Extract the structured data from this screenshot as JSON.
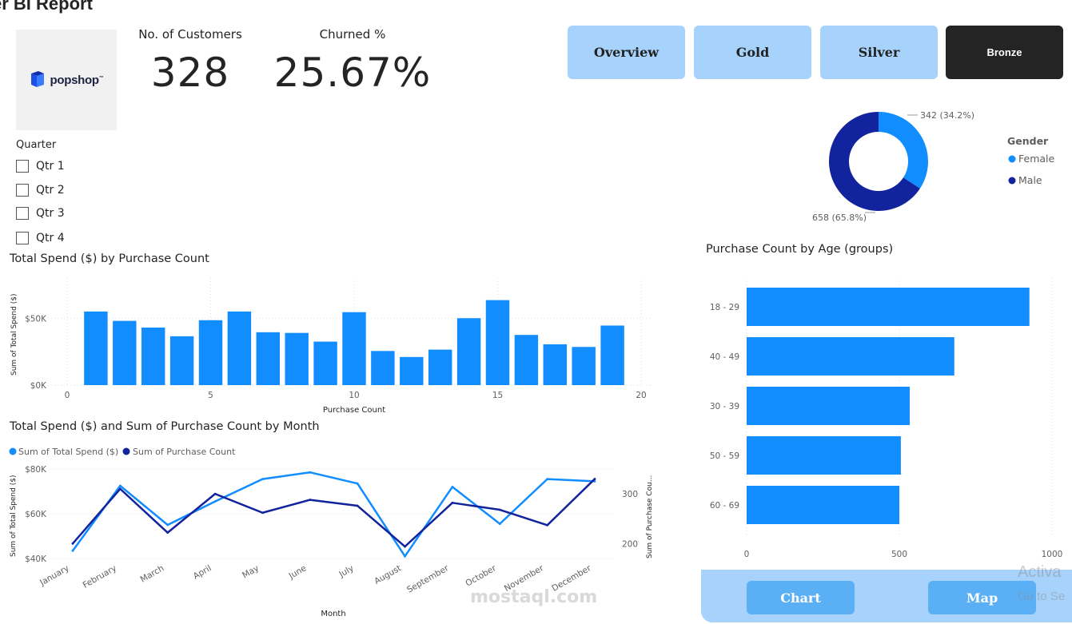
{
  "page": {
    "title": "er BI Report"
  },
  "logo": {
    "text": "popshop",
    "tm": "™"
  },
  "kpis": {
    "customers": {
      "label": "No. of Customers",
      "value": "328"
    },
    "churn": {
      "label": "Churned %",
      "value": "25.67%"
    }
  },
  "nav": {
    "overview": "Overview",
    "gold": "Gold",
    "silver": "Silver",
    "bronze": "Bronze"
  },
  "slicer": {
    "title": "Quarter",
    "items": [
      "Qtr 1",
      "Qtr 2",
      "Qtr 3",
      "Qtr 4"
    ]
  },
  "donut": {
    "legend_title": "Gender",
    "female_label": "342 (34.2%)",
    "male_label": "658 (65.8%)",
    "colors": {
      "female": "#118dff",
      "male": "#12239e"
    }
  },
  "visuals": {
    "spend_by_count_title": "Total Spend ($) by Purchase Count",
    "spend_by_month_title": "Total Spend ($) and Sum of Purchase Count by Month",
    "age_title": "Purchase Count by Age (groups)"
  },
  "chart_data": [
    {
      "type": "donut",
      "legend_title": "Gender",
      "categories": [
        "Female",
        "Male"
      ],
      "values": [
        342,
        658
      ],
      "labels": [
        "342 (34.2%)",
        "658 (65.8%)"
      ],
      "legend_placement": "right",
      "colors": [
        "#118dff",
        "#12239e"
      ]
    },
    {
      "type": "bar",
      "title": "Total Spend ($) by Purchase Count",
      "xlabel": "Purchase Count",
      "ylabel": "Sum of Total Spend ($)",
      "x": [
        1,
        2,
        3,
        4,
        5,
        6,
        7,
        8,
        9,
        10,
        11,
        12,
        13,
        14,
        15,
        16,
        17,
        18,
        19
      ],
      "values": [
        55000,
        48000,
        43000,
        36500,
        48500,
        55000,
        39500,
        39000,
        32500,
        54500,
        25500,
        21000,
        26500,
        50000,
        63500,
        37500,
        30500,
        28500,
        44500
      ],
      "xlim": [
        0,
        20
      ],
      "ylim": [
        0,
        80000
      ],
      "x_ticks": [
        "0",
        "5",
        "10",
        "15",
        "20"
      ],
      "y_ticks": [
        "$0K",
        "$50K"
      ],
      "grid": true,
      "color": "#118dff"
    },
    {
      "type": "line",
      "title": "Total Spend ($) and Sum of Purchase Count by Month",
      "xlabel": "Month",
      "ylabel": "Sum of Total Spend ($)",
      "y2label": "Sum of Purchase Cou...",
      "categories": [
        "January",
        "February",
        "March",
        "April",
        "May",
        "June",
        "July",
        "August",
        "September",
        "October",
        "November",
        "December"
      ],
      "series": [
        {
          "name": "Sum of Total Spend ($)",
          "axis": "left",
          "color": "#118dff",
          "values": [
            43500,
            72500,
            55000,
            65500,
            75500,
            78500,
            73500,
            41000,
            72000,
            55500,
            75500,
            74500
          ]
        },
        {
          "name": "Sum of Purchase Count",
          "axis": "right",
          "color": "#12239e",
          "values": [
            200,
            310,
            222,
            300,
            262,
            288,
            276,
            194,
            282,
            268,
            237,
            330
          ]
        }
      ],
      "ylim": [
        40000,
        80000
      ],
      "y2lim": [
        170,
        350
      ],
      "y_ticks": [
        "$40K",
        "$60K",
        "$80K"
      ],
      "y2_ticks": [
        "200",
        "300"
      ],
      "legend_placement": "top-left"
    },
    {
      "type": "bar",
      "orientation": "horizontal",
      "title": "Purchase Count by Age (groups)",
      "categories": [
        "18 - 29",
        "40 - 49",
        "30 - 39",
        "50 - 59",
        "60 - 69"
      ],
      "values": [
        926,
        680,
        534,
        505,
        500
      ],
      "xlim": [
        0,
        1000
      ],
      "x_ticks": [
        "0",
        "500",
        "1000"
      ],
      "color": "#118dff"
    }
  ],
  "panel": {
    "chart": "Chart",
    "map": "Map"
  },
  "overlay": {
    "watermark": "mostaql.com",
    "activate": "Activa",
    "activate_sub": "Go to Se"
  }
}
